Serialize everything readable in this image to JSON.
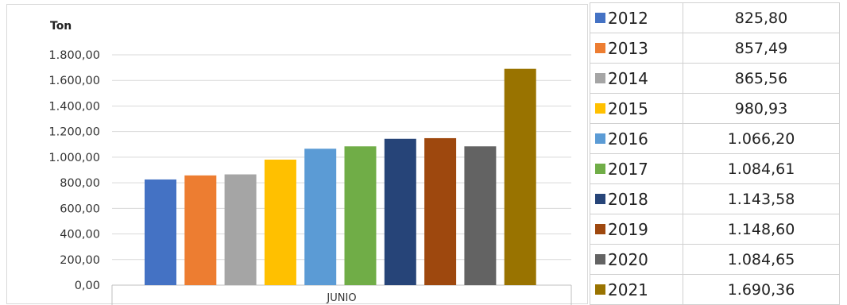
{
  "chart_data": {
    "type": "bar",
    "categories": [
      "JUNIO"
    ],
    "ylabel": "Ton",
    "xlabel": "",
    "ylim": [
      0,
      1800
    ],
    "y_ticks": [
      "0,00",
      "200,00",
      "400,00",
      "600,00",
      "800,00",
      "1.000,00",
      "1.200,00",
      "1.400,00",
      "1.600,00",
      "1.800,00"
    ],
    "grid": true,
    "legend_placement": "right",
    "series": [
      {
        "name": "2012",
        "values": [
          825.8
        ],
        "label": "825,80",
        "color": "#4472C4"
      },
      {
        "name": "2013",
        "values": [
          857.49
        ],
        "label": "857,49",
        "color": "#ED7D31"
      },
      {
        "name": "2014",
        "values": [
          865.56
        ],
        "label": "865,56",
        "color": "#A5A5A5"
      },
      {
        "name": "2015",
        "values": [
          980.93
        ],
        "label": "980,93",
        "color": "#FFC000"
      },
      {
        "name": "2016",
        "values": [
          1066.2
        ],
        "label": "1.066,20",
        "color": "#5B9BD5"
      },
      {
        "name": "2017",
        "values": [
          1084.61
        ],
        "label": "1.084,61",
        "color": "#70AD47"
      },
      {
        "name": "2018",
        "values": [
          1143.58
        ],
        "label": "1.143,58",
        "color": "#264478"
      },
      {
        "name": "2019",
        "values": [
          1148.6
        ],
        "label": "1.148,60",
        "color": "#9E480E"
      },
      {
        "name": "2020",
        "values": [
          1084.65
        ],
        "label": "1.084,65",
        "color": "#636363"
      },
      {
        "name": "2021",
        "values": [
          1690.36
        ],
        "label": "1.690,36",
        "color": "#997300"
      }
    ]
  }
}
